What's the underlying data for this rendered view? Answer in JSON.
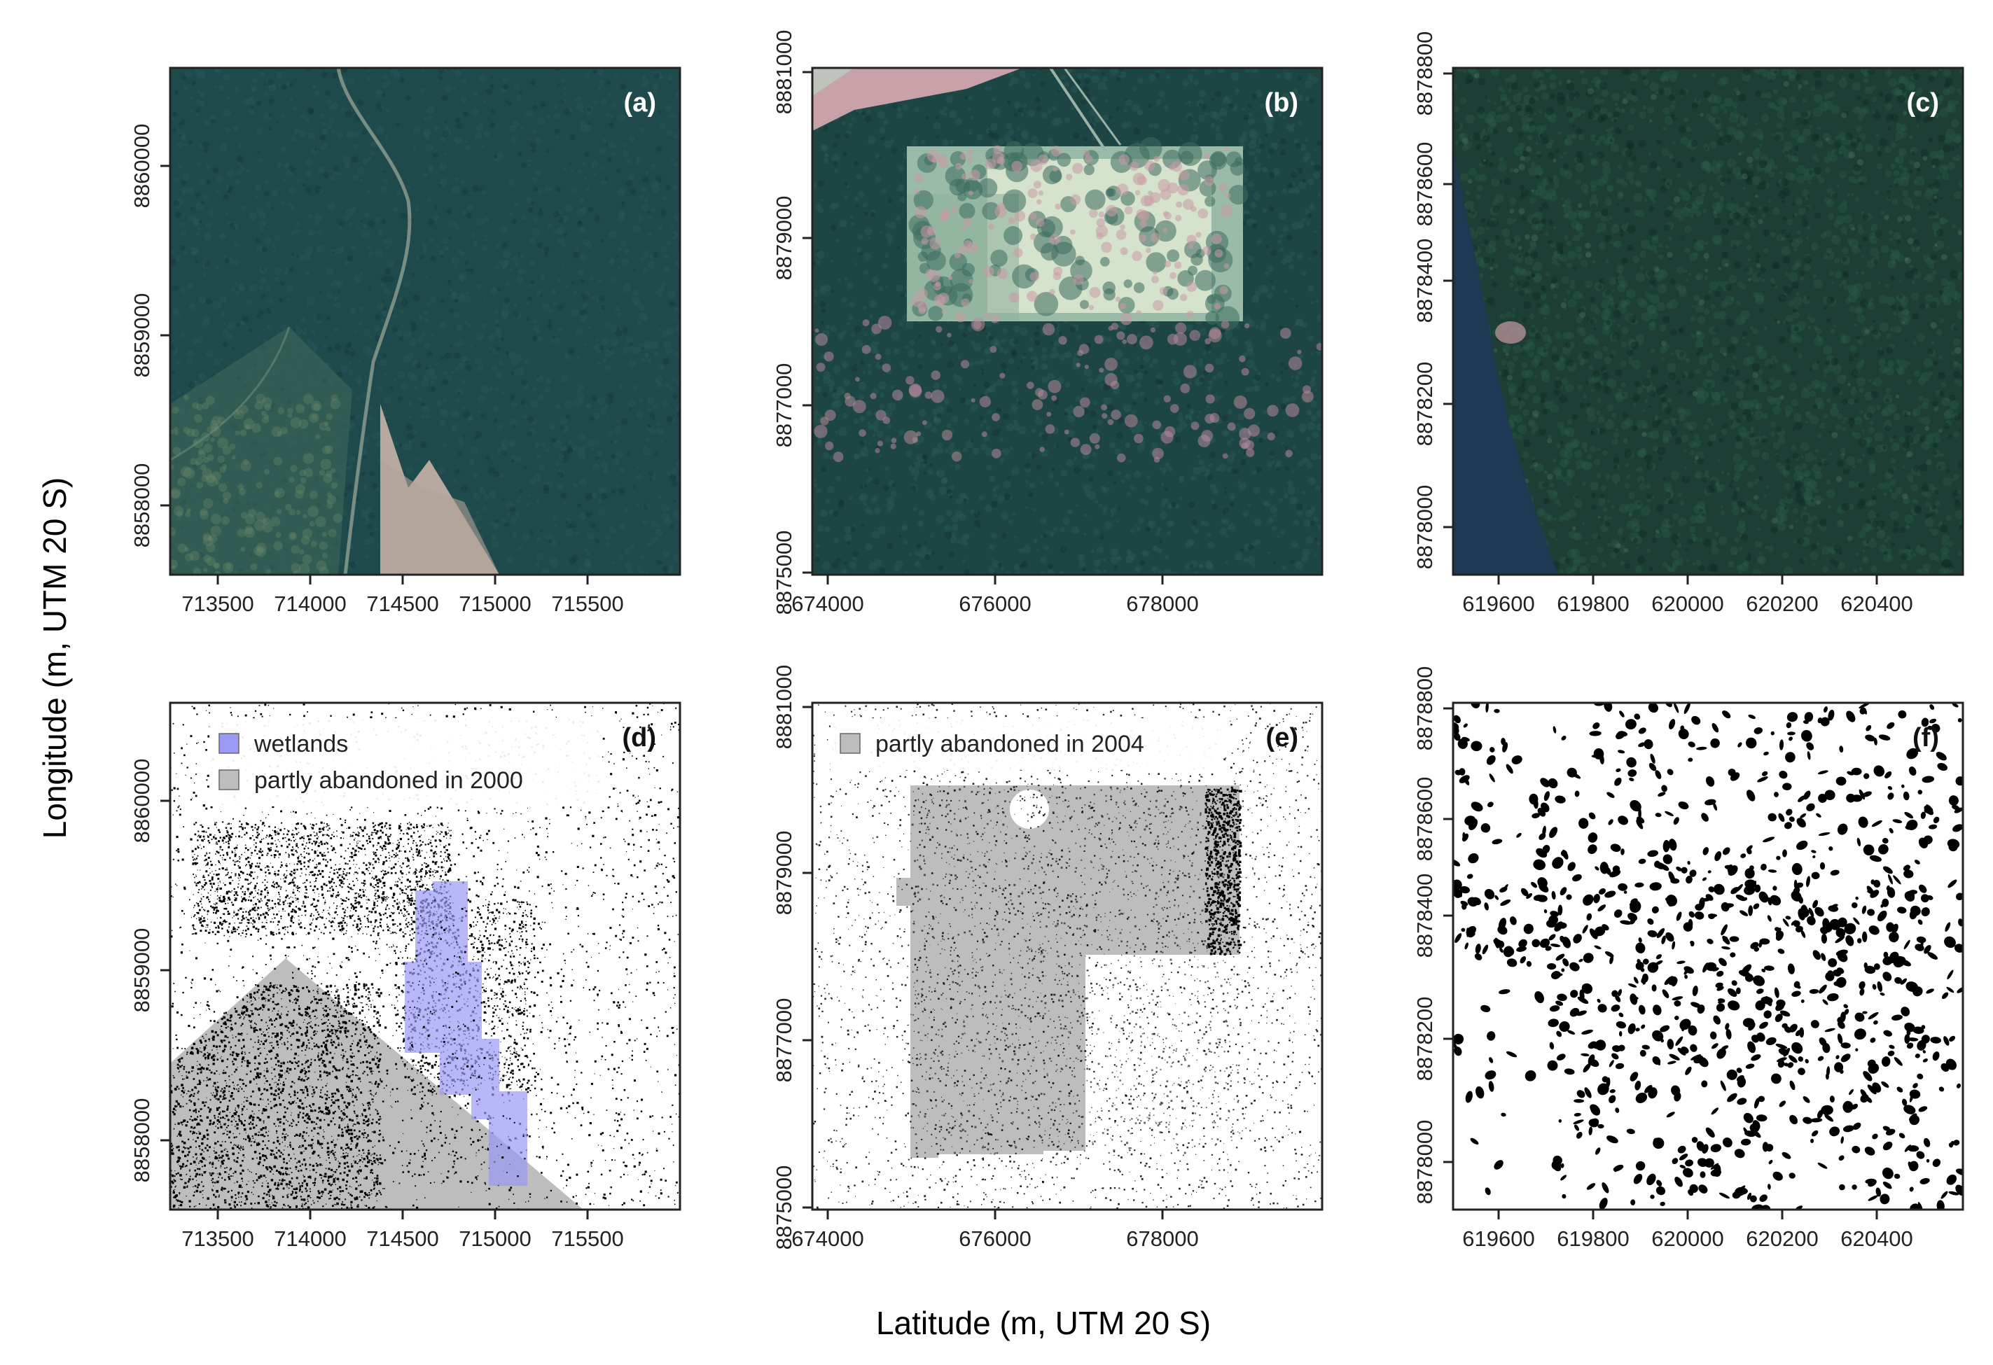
{
  "figure": {
    "x_title": "Latitude (m, UTM 20 S)",
    "y_title": "Longitude (m, UTM 20 S)"
  },
  "colors": {
    "forest": "#1f4a4c",
    "forest_dark": "#183c3f",
    "clearing_pink": "#c7a4a7",
    "clearing_light": "#dfe9d2",
    "pasture": "#b7a9a0",
    "river": "#1e3954",
    "wetland": "#9a9af5",
    "abandoned": "#bdbdbd",
    "speck": "#000000"
  },
  "panels": [
    {
      "id": "a",
      "label": "(a)",
      "kind": "image",
      "xticks": [
        {
          "v": "713500"
        },
        {
          "v": "714000"
        },
        {
          "v": "714500"
        },
        {
          "v": "715000"
        },
        {
          "v": "715500"
        }
      ],
      "yticks": [
        {
          "v": "8858000"
        },
        {
          "v": "8859000"
        },
        {
          "v": "8860000"
        }
      ]
    },
    {
      "id": "b",
      "label": "(b)",
      "kind": "image",
      "xticks": [
        {
          "v": "674000"
        },
        {
          "v": "676000"
        },
        {
          "v": "678000"
        }
      ],
      "yticks": [
        {
          "v": "8875000"
        },
        {
          "v": "8877000"
        },
        {
          "v": "8879000"
        },
        {
          "v": "8881000"
        }
      ]
    },
    {
      "id": "c",
      "label": "(c)",
      "kind": "image",
      "xticks": [
        {
          "v": "619600"
        },
        {
          "v": "619800"
        },
        {
          "v": "620000"
        },
        {
          "v": "620200"
        },
        {
          "v": "620400"
        }
      ],
      "yticks": [
        {
          "v": "8878000"
        },
        {
          "v": "8878200"
        },
        {
          "v": "8878400"
        },
        {
          "v": "8878600"
        },
        {
          "v": "8878800"
        }
      ]
    },
    {
      "id": "d",
      "label": "(d)",
      "kind": "map",
      "legend": [
        {
          "text": "wetlands",
          "swatch": "wetland"
        },
        {
          "text": "partly abandoned in 2000",
          "swatch": "abandoned"
        }
      ],
      "xticks": [
        {
          "v": "713500"
        },
        {
          "v": "714000"
        },
        {
          "v": "714500"
        },
        {
          "v": "715000"
        },
        {
          "v": "715500"
        }
      ],
      "yticks": [
        {
          "v": "8858000"
        },
        {
          "v": "8859000"
        },
        {
          "v": "8860000"
        }
      ]
    },
    {
      "id": "e",
      "label": "(e)",
      "kind": "map",
      "legend": [
        {
          "text": "partly abandoned in 2004",
          "swatch": "abandoned"
        }
      ],
      "xticks": [
        {
          "v": "674000"
        },
        {
          "v": "676000"
        },
        {
          "v": "678000"
        }
      ],
      "yticks": [
        {
          "v": "8875000"
        },
        {
          "v": "8877000"
        },
        {
          "v": "8879000"
        },
        {
          "v": "8881000"
        }
      ]
    },
    {
      "id": "f",
      "label": "(f)",
      "kind": "map",
      "xticks": [
        {
          "v": "619600"
        },
        {
          "v": "619800"
        },
        {
          "v": "620000"
        },
        {
          "v": "620200"
        },
        {
          "v": "620400"
        }
      ],
      "yticks": [
        {
          "v": "8878000"
        },
        {
          "v": "8878200"
        },
        {
          "v": "8878400"
        },
        {
          "v": "8878600"
        },
        {
          "v": "8878800"
        }
      ]
    }
  ]
}
